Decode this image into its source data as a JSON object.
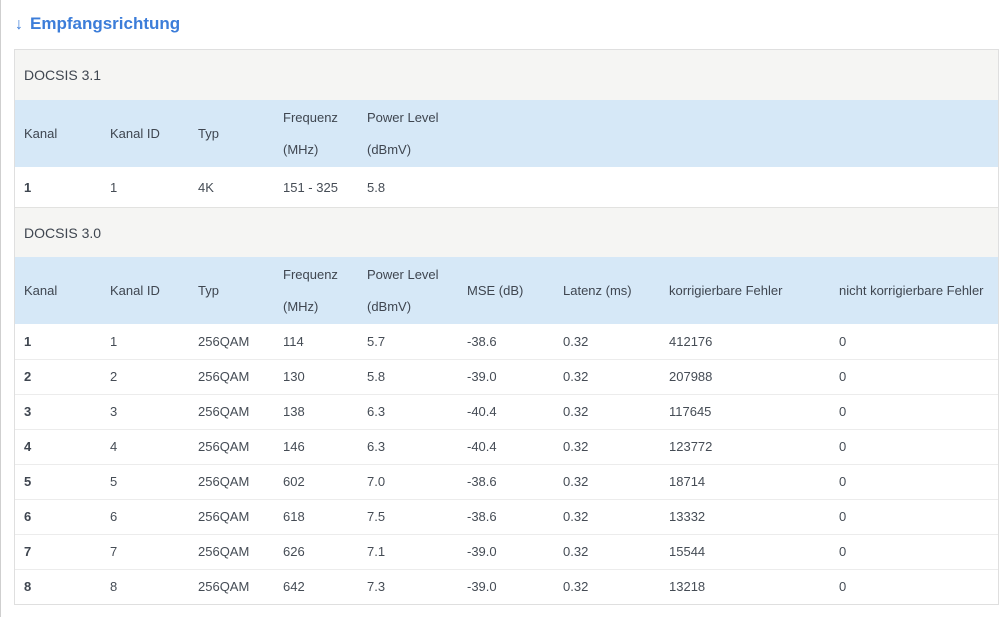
{
  "heading": {
    "arrow": "↓",
    "label": "Empfangsrichtung"
  },
  "colors": {
    "accent_blue": "#3c7dd9",
    "table_header_bg": "#d6e8f7",
    "section_bg": "#f5f5f3",
    "text": "#3f4650",
    "border": "#dfdfdf"
  },
  "docsis31": {
    "section_label": "DOCSIS 3.1",
    "headers": [
      [
        "Kanal"
      ],
      [
        "Kanal ID"
      ],
      [
        "Typ"
      ],
      [
        "Frequenz",
        "(MHz)"
      ],
      [
        "Power Level",
        "(dBmV)"
      ]
    ],
    "rows": [
      [
        "1",
        "1",
        "4K",
        "151 - 325",
        "5.8"
      ]
    ]
  },
  "docsis30": {
    "section_label": "DOCSIS 3.0",
    "headers": [
      [
        "Kanal"
      ],
      [
        "Kanal ID"
      ],
      [
        "Typ"
      ],
      [
        "Frequenz",
        "(MHz)"
      ],
      [
        "Power Level",
        "(dBmV)"
      ],
      [
        "MSE (dB)"
      ],
      [
        "Latenz (ms)"
      ],
      [
        "korrigierbare Fehler"
      ],
      [
        "nicht korrigierbare Fehler"
      ]
    ],
    "rows": [
      [
        "1",
        "1",
        "256QAM",
        "114",
        "5.7",
        "-38.6",
        "0.32",
        "412176",
        "0"
      ],
      [
        "2",
        "2",
        "256QAM",
        "130",
        "5.8",
        "-39.0",
        "0.32",
        "207988",
        "0"
      ],
      [
        "3",
        "3",
        "256QAM",
        "138",
        "6.3",
        "-40.4",
        "0.32",
        "117645",
        "0"
      ],
      [
        "4",
        "4",
        "256QAM",
        "146",
        "6.3",
        "-40.4",
        "0.32",
        "123772",
        "0"
      ],
      [
        "5",
        "5",
        "256QAM",
        "602",
        "7.0",
        "-38.6",
        "0.32",
        "18714",
        "0"
      ],
      [
        "6",
        "6",
        "256QAM",
        "618",
        "7.5",
        "-38.6",
        "0.32",
        "13332",
        "0"
      ],
      [
        "7",
        "7",
        "256QAM",
        "626",
        "7.1",
        "-39.0",
        "0.32",
        "15544",
        "0"
      ],
      [
        "8",
        "8",
        "256QAM",
        "642",
        "7.3",
        "-39.0",
        "0.32",
        "13218",
        "0"
      ]
    ]
  }
}
